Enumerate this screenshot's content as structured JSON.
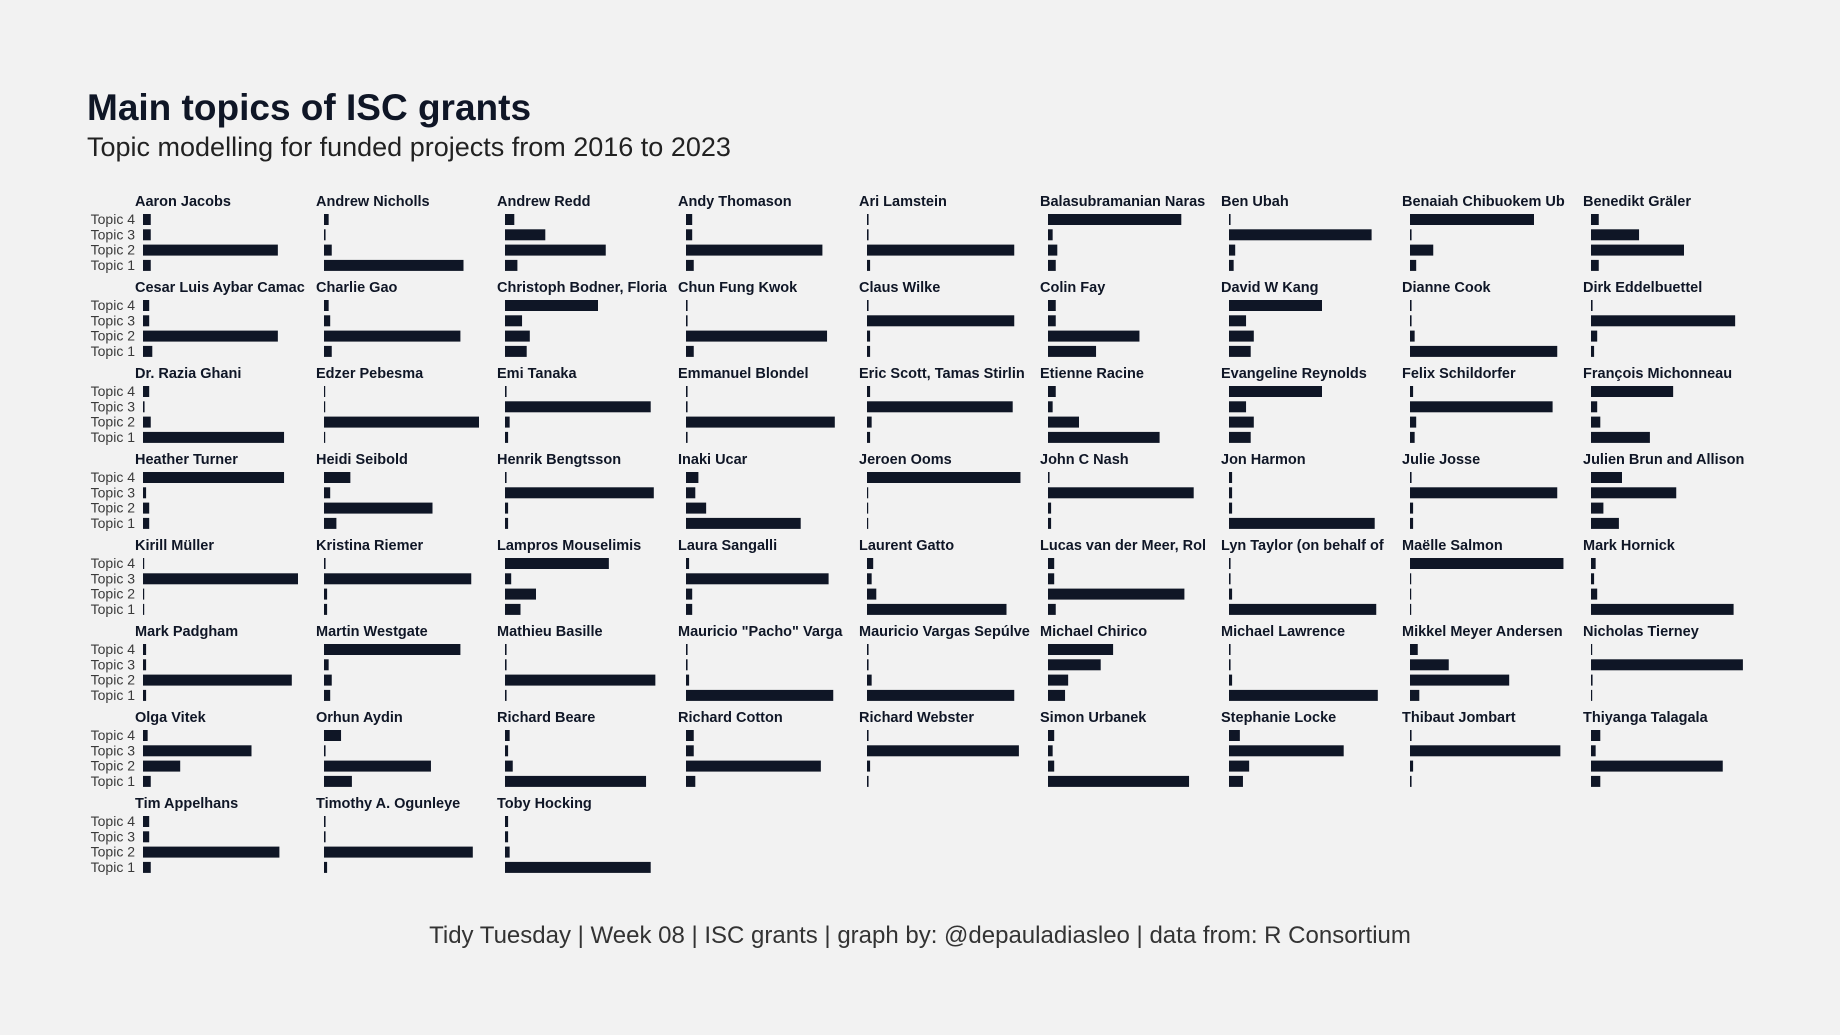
{
  "title": "Main topics of ISC grants",
  "subtitle": "Topic modelling for funded projects from 2016 to 2023",
  "caption": "Tidy Tuesday | Week 08 | ISC grants | graph by: @depauladiasleo | data from: R Consortium",
  "colors": {
    "bar": "#0f1626",
    "background": "#f2f2f2",
    "text": "#0f1626"
  },
  "chart_data": {
    "type": "bar",
    "orientation": "horizontal",
    "facets": "small multiples, one panel per grant author",
    "categories": [
      "Topic 4",
      "Topic 3",
      "Topic 2",
      "Topic 1"
    ],
    "xlim": [
      0,
      1
    ],
    "axis_x_shown": false,
    "grid": false,
    "panels": [
      {
        "name": "Aaron Jacobs",
        "values": [
          0.05,
          0.05,
          0.87,
          0.05
        ]
      },
      {
        "name": "Andrew Nicholls",
        "values": [
          0.03,
          0.01,
          0.05,
          0.9
        ]
      },
      {
        "name": "Andrew Redd",
        "values": [
          0.06,
          0.26,
          0.65,
          0.08
        ]
      },
      {
        "name": "Andy Thomason",
        "values": [
          0.04,
          0.04,
          0.88,
          0.05
        ]
      },
      {
        "name": "Ari Lamstein",
        "values": [
          0.01,
          0.01,
          0.95,
          0.02
        ]
      },
      {
        "name": "Balasubramanian Naras",
        "values": [
          0.86,
          0.03,
          0.06,
          0.05
        ]
      },
      {
        "name": "Ben Ubah",
        "values": [
          0.01,
          0.92,
          0.04,
          0.03
        ]
      },
      {
        "name": "Benaiah Chibuokem Ub",
        "values": [
          0.8,
          0.01,
          0.15,
          0.04
        ]
      },
      {
        "name": "Benedikt Gräler",
        "values": [
          0.05,
          0.31,
          0.6,
          0.05
        ]
      },
      {
        "name": "Cesar Luis Aybar Camac",
        "values": [
          0.04,
          0.04,
          0.87,
          0.06
        ]
      },
      {
        "name": "Charlie Gao",
        "values": [
          0.03,
          0.04,
          0.88,
          0.05
        ]
      },
      {
        "name": "Christoph Bodner, Floria",
        "values": [
          0.6,
          0.11,
          0.16,
          0.14
        ]
      },
      {
        "name": "Chun Fung Kwok",
        "values": [
          0.01,
          0.01,
          0.91,
          0.05
        ]
      },
      {
        "name": "Claus Wilke",
        "values": [
          0.01,
          0.95,
          0.02,
          0.02
        ]
      },
      {
        "name": "Colin Fay",
        "values": [
          0.05,
          0.05,
          0.59,
          0.31
        ]
      },
      {
        "name": "David W Kang",
        "values": [
          0.6,
          0.11,
          0.16,
          0.14
        ]
      },
      {
        "name": "Dianne Cook",
        "values": [
          0.01,
          0.01,
          0.03,
          0.95
        ]
      },
      {
        "name": "Dirk Eddelbuettel",
        "values": [
          0.01,
          0.93,
          0.04,
          0.02
        ]
      },
      {
        "name": "Dr. Razia Ghani",
        "values": [
          0.04,
          0.01,
          0.05,
          0.91
        ]
      },
      {
        "name": "Edzer Pebesma",
        "values": [
          0.004,
          0.004,
          1.0,
          0.004
        ]
      },
      {
        "name": "Emi Tanaka",
        "values": [
          0.01,
          0.94,
          0.03,
          0.02
        ]
      },
      {
        "name": "Emmanuel Blondel",
        "values": [
          0.01,
          0.01,
          0.96,
          0.01
        ]
      },
      {
        "name": "Eric Scott, Tamas Stirlin",
        "values": [
          0.02,
          0.94,
          0.03,
          0.02
        ]
      },
      {
        "name": "Etienne Racine",
        "values": [
          0.05,
          0.03,
          0.2,
          0.72
        ]
      },
      {
        "name": "Evangeline Reynolds",
        "values": [
          0.6,
          0.11,
          0.16,
          0.14
        ]
      },
      {
        "name": "Felix Schildorfer",
        "values": [
          0.02,
          0.92,
          0.04,
          0.03
        ]
      },
      {
        "name": "François Michonneau",
        "values": [
          0.53,
          0.04,
          0.06,
          0.38
        ]
      },
      {
        "name": "Heather Turner",
        "values": [
          0.91,
          0.02,
          0.04,
          0.04
        ]
      },
      {
        "name": "Heidi Seibold",
        "values": [
          0.17,
          0.04,
          0.7,
          0.08
        ]
      },
      {
        "name": "Henrik Bengtsson",
        "values": [
          0.01,
          0.96,
          0.02,
          0.02
        ]
      },
      {
        "name": "Inaki Ucar",
        "values": [
          0.08,
          0.06,
          0.13,
          0.74
        ]
      },
      {
        "name": "Jeroen Ooms",
        "values": [
          0.99,
          0.004,
          0.004,
          0.004
        ]
      },
      {
        "name": "John C Nash",
        "values": [
          0.01,
          0.94,
          0.02,
          0.02
        ]
      },
      {
        "name": "Jon Harmon",
        "values": [
          0.02,
          0.02,
          0.02,
          0.94
        ]
      },
      {
        "name": "Julie Josse",
        "values": [
          0.01,
          0.95,
          0.02,
          0.02
        ]
      },
      {
        "name": "Julien Brun and Allison",
        "values": [
          0.2,
          0.55,
          0.08,
          0.18
        ]
      },
      {
        "name": "Kirill Müller",
        "values": [
          0.004,
          1.0,
          0.004,
          0.004
        ]
      },
      {
        "name": "Kristina Riemer",
        "values": [
          0.01,
          0.95,
          0.02,
          0.02
        ]
      },
      {
        "name": "Lampros Mouselimis",
        "values": [
          0.67,
          0.04,
          0.2,
          0.1
        ]
      },
      {
        "name": "Laura Sangalli",
        "values": [
          0.02,
          0.92,
          0.04,
          0.04
        ]
      },
      {
        "name": "Laurent Gatto",
        "values": [
          0.04,
          0.03,
          0.06,
          0.9
        ]
      },
      {
        "name": "Lucas van der Meer, Rol",
        "values": [
          0.04,
          0.04,
          0.88,
          0.05
        ]
      },
      {
        "name": "Lyn Taylor (on behalf of",
        "values": [
          0.01,
          0.01,
          0.02,
          0.95
        ]
      },
      {
        "name": "Maëlle Salmon",
        "values": [
          0.99,
          0.004,
          0.004,
          0.004
        ]
      },
      {
        "name": "Mark Hornick",
        "values": [
          0.03,
          0.02,
          0.04,
          0.92
        ]
      },
      {
        "name": "Mark Padgham",
        "values": [
          0.02,
          0.02,
          0.96,
          0.02
        ]
      },
      {
        "name": "Martin Westgate",
        "values": [
          0.88,
          0.03,
          0.05,
          0.04
        ]
      },
      {
        "name": "Mathieu Basille",
        "values": [
          0.01,
          0.01,
          0.97,
          0.01
        ]
      },
      {
        "name": "Mauricio \"Pacho\" Varga",
        "values": [
          0.01,
          0.01,
          0.02,
          0.95
        ]
      },
      {
        "name": "Mauricio Vargas Sepúlve",
        "values": [
          0.01,
          0.01,
          0.03,
          0.95
        ]
      },
      {
        "name": "Michael Chirico",
        "values": [
          0.42,
          0.34,
          0.13,
          0.11
        ]
      },
      {
        "name": "Michael Lawrence",
        "values": [
          0.01,
          0.01,
          0.02,
          0.96
        ]
      },
      {
        "name": "Mikkel Meyer Andersen",
        "values": [
          0.05,
          0.25,
          0.64,
          0.06
        ]
      },
      {
        "name": "Nicholas Tierney",
        "values": [
          0.004,
          0.98,
          0.01,
          0.004
        ]
      },
      {
        "name": "Olga Vitek",
        "values": [
          0.03,
          0.7,
          0.24,
          0.05
        ]
      },
      {
        "name": "Orhun Aydin",
        "values": [
          0.11,
          0.01,
          0.69,
          0.18
        ]
      },
      {
        "name": "Richard Beare",
        "values": [
          0.03,
          0.02,
          0.05,
          0.91
        ]
      },
      {
        "name": "Richard Cotton",
        "values": [
          0.05,
          0.05,
          0.87,
          0.06
        ]
      },
      {
        "name": "Richard Webster",
        "values": [
          0.01,
          0.98,
          0.02,
          0.01
        ]
      },
      {
        "name": "Simon Urbanek",
        "values": [
          0.04,
          0.03,
          0.04,
          0.91
        ]
      },
      {
        "name": "Stephanie Locke",
        "values": [
          0.07,
          0.74,
          0.13,
          0.09
        ]
      },
      {
        "name": "Thibaut Jombart",
        "values": [
          0.01,
          0.97,
          0.02,
          0.01
        ]
      },
      {
        "name": "Thiyanga Talagala",
        "values": [
          0.06,
          0.03,
          0.85,
          0.06
        ]
      },
      {
        "name": "Tim Appelhans",
        "values": [
          0.04,
          0.04,
          0.88,
          0.05
        ]
      },
      {
        "name": "Timothy A. Ogunleye",
        "values": [
          0.01,
          0.01,
          0.96,
          0.02
        ]
      },
      {
        "name": "Toby Hocking",
        "values": [
          0.02,
          0.02,
          0.03,
          0.94
        ]
      }
    ]
  }
}
